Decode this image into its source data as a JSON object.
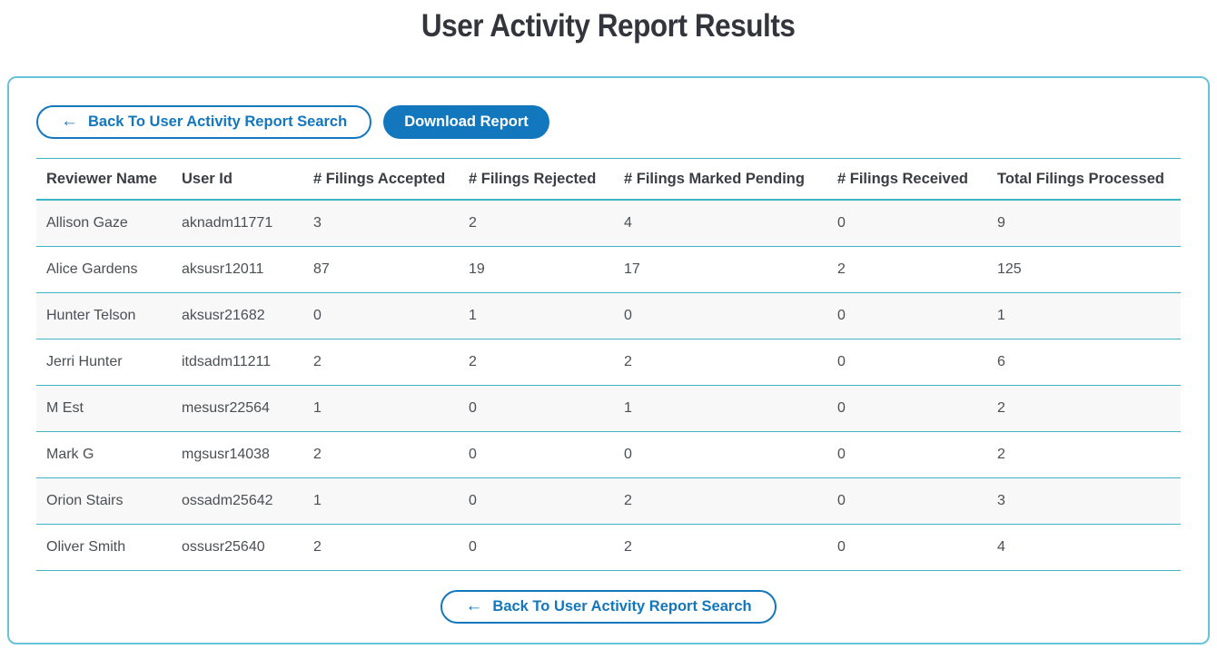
{
  "page": {
    "title": "User Activity Report Results"
  },
  "toolbar": {
    "back_arrow": "←",
    "back_button_label": "Back To User Activity Report Search",
    "download_button_label": "Download Report"
  },
  "table": {
    "columns": [
      "Reviewer Name",
      "User Id",
      "# Filings Accepted",
      "# Filings Rejected",
      "# Filings Marked Pending",
      "# Filings Received",
      "Total Filings Processed"
    ],
    "rows": [
      [
        "Allison Gaze",
        "aknadm11771",
        "3",
        "2",
        "4",
        "0",
        "9"
      ],
      [
        "Alice Gardens",
        "aksusr12011",
        "87",
        "19",
        "17",
        "2",
        "125"
      ],
      [
        "Hunter Telson",
        "aksusr21682",
        "0",
        "1",
        "0",
        "0",
        "1"
      ],
      [
        "Jerri Hunter",
        "itdsadm11211",
        "2",
        "2",
        "2",
        "0",
        "6"
      ],
      [
        "M Est",
        "mesusr22564",
        "1",
        "0",
        "1",
        "0",
        "2"
      ],
      [
        "Mark G",
        "mgsusr14038",
        "2",
        "0",
        "0",
        "0",
        "2"
      ],
      [
        "Orion Stairs",
        "ossadm25642",
        "1",
        "0",
        "2",
        "0",
        "3"
      ],
      [
        "Oliver Smith",
        "ossusr25640",
        "2",
        "0",
        "2",
        "0",
        "4"
      ]
    ]
  },
  "footer": {
    "back_arrow": "←",
    "back_button_label": "Back To User Activity Report Search"
  },
  "colors": {
    "accent_blue": "#1377bd",
    "divider_teal": "#3db5c4",
    "card_border": "#67c4d8",
    "alt_row_bg": "#f8f8f8"
  }
}
